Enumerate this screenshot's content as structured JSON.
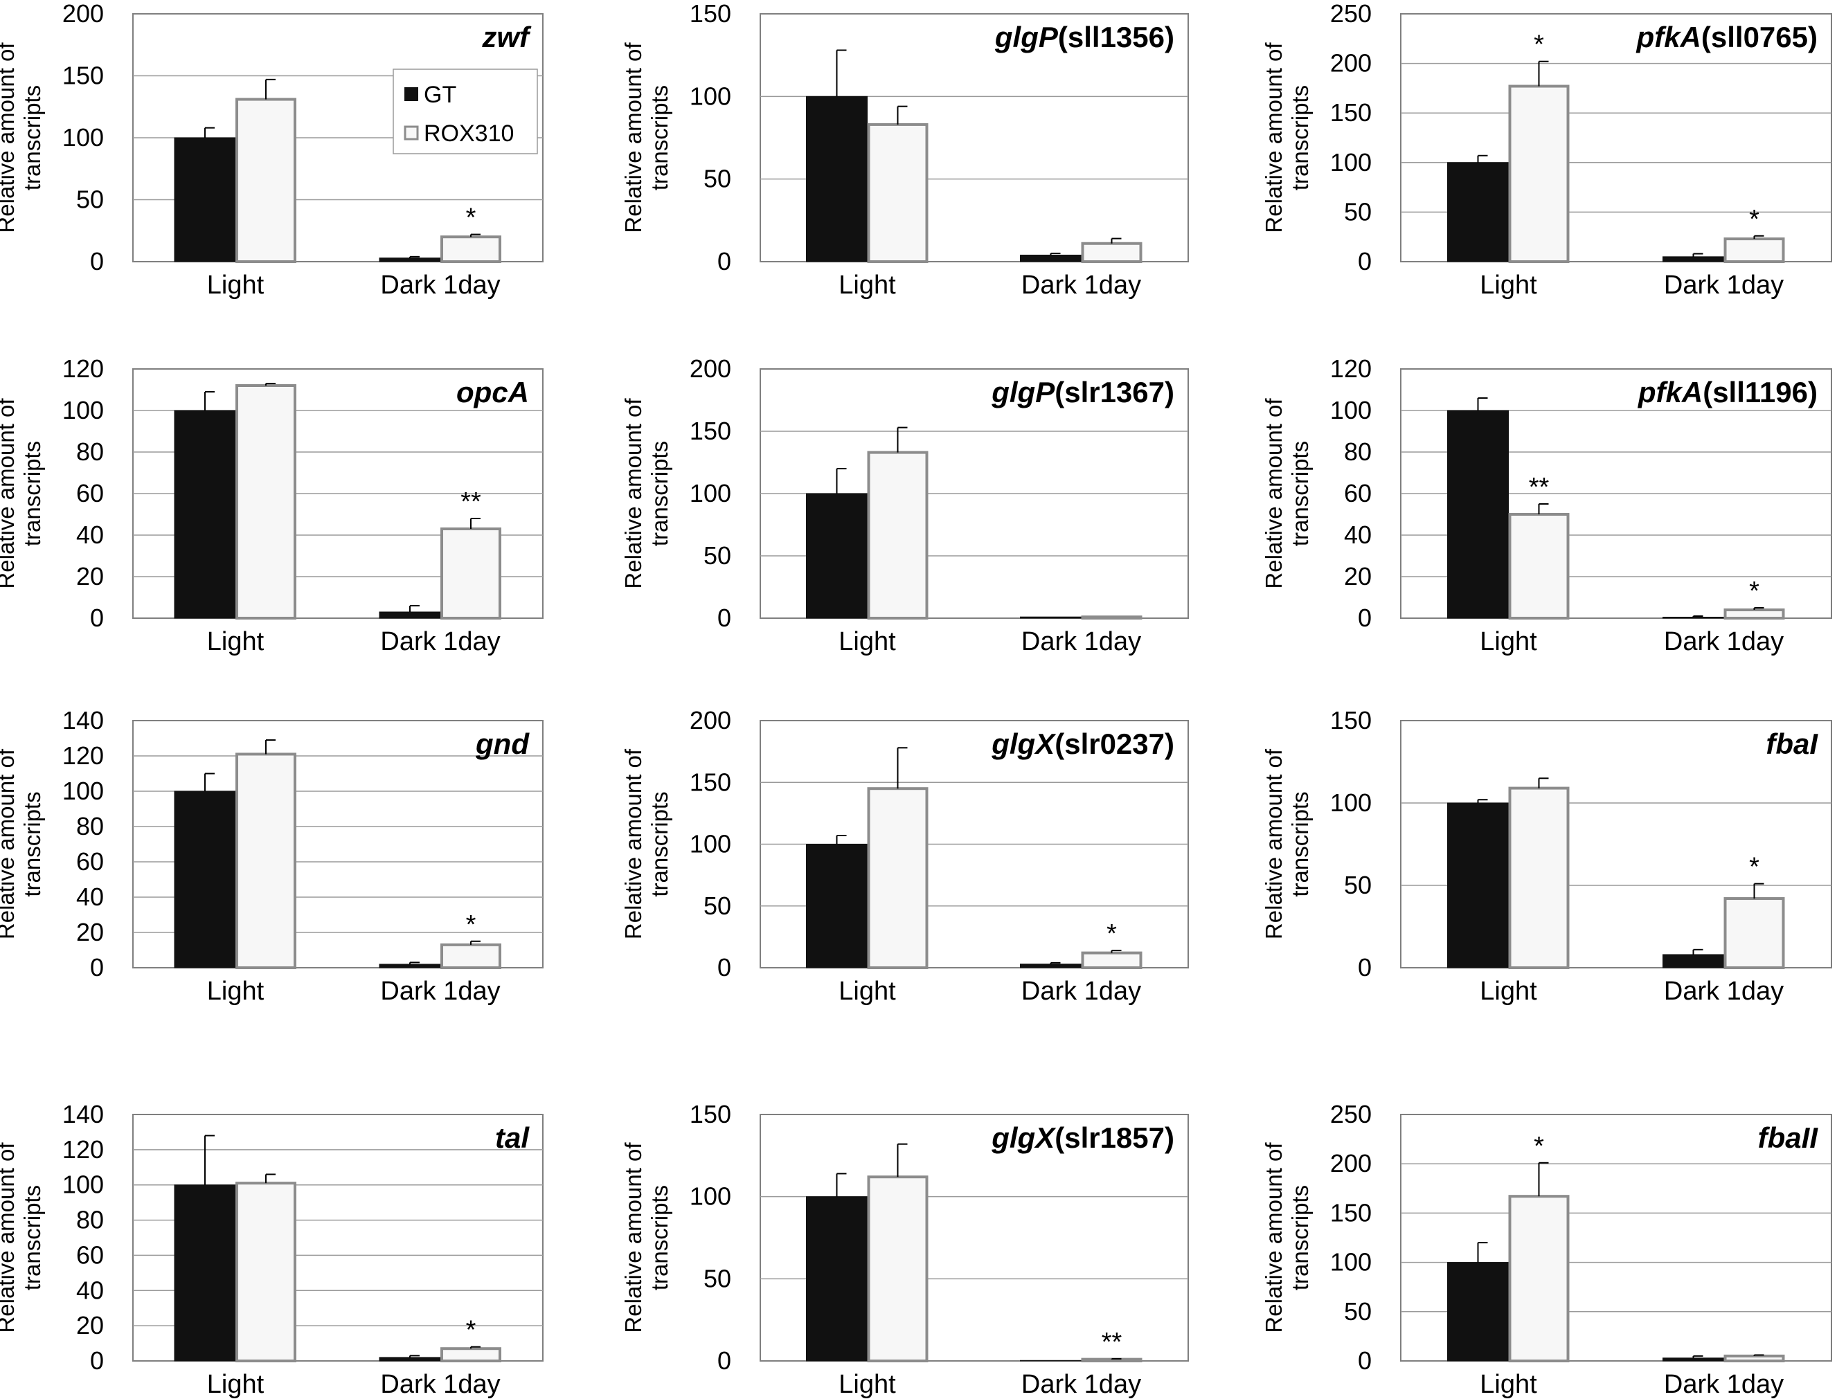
{
  "legend": {
    "entries": [
      {
        "name": "GT",
        "color": "#111111"
      },
      {
        "name": "ROX310",
        "color": "#8c8c8c"
      }
    ],
    "placement": "top-panel-1"
  },
  "colors": {
    "gt_fill": "#111111",
    "rox_fill": "#f7f7f7",
    "rox_stroke": "#8c8c8c",
    "grid": "#9a9a9a",
    "axis": "#7f7f7f"
  },
  "chart_data": [
    {
      "type": "bar",
      "title_gene": "zwf",
      "title_suffix": "",
      "ylabel": [
        "Relative amount of",
        "transcripts"
      ],
      "categories": [
        "Light",
        "Dark 1day"
      ],
      "ylim": [
        0,
        200
      ],
      "yticks": [
        0,
        50,
        100,
        150,
        200
      ],
      "series": [
        {
          "name": "GT",
          "values": [
            100,
            3
          ],
          "errors": [
            8,
            1
          ]
        },
        {
          "name": "ROX310",
          "values": [
            131,
            20
          ],
          "errors": [
            16,
            2
          ]
        }
      ],
      "annotations": [
        {
          "category": 1,
          "series": 1,
          "text": "*"
        }
      ],
      "legend": true
    },
    {
      "type": "bar",
      "title_gene": "glgP",
      "title_suffix": "(sll1356)",
      "ylabel": [
        "Relative amount of",
        "transcripts"
      ],
      "categories": [
        "Light",
        "Dark 1day"
      ],
      "ylim": [
        0,
        150
      ],
      "yticks": [
        0,
        50,
        100,
        150
      ],
      "series": [
        {
          "name": "GT",
          "values": [
            100,
            4
          ],
          "errors": [
            28,
            1
          ]
        },
        {
          "name": "ROX310",
          "values": [
            83,
            11
          ],
          "errors": [
            11,
            3
          ]
        }
      ],
      "annotations": []
    },
    {
      "type": "bar",
      "title_gene": "pfkA",
      "title_suffix": "(sll0765)",
      "ylabel": [
        "Relative amount of",
        "transcripts"
      ],
      "categories": [
        "Light",
        "Dark 1day"
      ],
      "ylim": [
        0,
        250
      ],
      "yticks": [
        0,
        50,
        100,
        150,
        200,
        250
      ],
      "series": [
        {
          "name": "GT",
          "values": [
            100,
            5
          ],
          "errors": [
            7,
            3
          ]
        },
        {
          "name": "ROX310",
          "values": [
            177,
            23
          ],
          "errors": [
            25,
            3
          ]
        }
      ],
      "annotations": [
        {
          "category": 0,
          "series": 1,
          "text": "*"
        },
        {
          "category": 1,
          "series": 1,
          "text": "*"
        }
      ]
    },
    {
      "type": "bar",
      "title_gene": "opcA",
      "title_suffix": "",
      "ylabel": [
        "Relative amount of",
        "transcripts"
      ],
      "categories": [
        "Light",
        "Dark 1day"
      ],
      "ylim": [
        0,
        120
      ],
      "yticks": [
        0,
        20,
        40,
        60,
        80,
        100,
        120
      ],
      "series": [
        {
          "name": "GT",
          "values": [
            100,
            3
          ],
          "errors": [
            9,
            3
          ]
        },
        {
          "name": "ROX310",
          "values": [
            112,
            43
          ],
          "errors": [
            1,
            5
          ]
        }
      ],
      "annotations": [
        {
          "category": 1,
          "series": 1,
          "text": "**"
        }
      ]
    },
    {
      "type": "bar",
      "title_gene": "glgP",
      "title_suffix": "(slr1367)",
      "ylabel": [
        "Relative amount of",
        "transcripts"
      ],
      "categories": [
        "Light",
        "Dark 1day"
      ],
      "ylim": [
        0,
        200
      ],
      "yticks": [
        0,
        50,
        100,
        150,
        200
      ],
      "series": [
        {
          "name": "GT",
          "values": [
            100,
            1
          ],
          "errors": [
            20,
            0
          ]
        },
        {
          "name": "ROX310",
          "values": [
            133,
            1
          ],
          "errors": [
            20,
            0
          ]
        }
      ],
      "annotations": []
    },
    {
      "type": "bar",
      "title_gene": "pfkA",
      "title_suffix": "(sll1196)",
      "ylabel": [
        "Relative amount of",
        "transcripts"
      ],
      "categories": [
        "Light",
        "Dark 1day"
      ],
      "ylim": [
        0,
        120
      ],
      "yticks": [
        0,
        20,
        40,
        60,
        80,
        100,
        120
      ],
      "series": [
        {
          "name": "GT",
          "values": [
            100,
            0.5
          ],
          "errors": [
            6,
            0.5
          ]
        },
        {
          "name": "ROX310",
          "values": [
            50,
            4
          ],
          "errors": [
            5,
            1
          ]
        }
      ],
      "annotations": [
        {
          "category": 0,
          "series": 1,
          "text": "**"
        },
        {
          "category": 1,
          "series": 1,
          "text": "*"
        }
      ]
    },
    {
      "type": "bar",
      "title_gene": "gnd",
      "title_suffix": "",
      "ylabel": [
        "Relative amount of",
        "transcripts"
      ],
      "categories": [
        "Light",
        "Dark 1day"
      ],
      "ylim": [
        0,
        140
      ],
      "yticks": [
        0,
        20,
        40,
        60,
        80,
        100,
        120,
        140
      ],
      "series": [
        {
          "name": "GT",
          "values": [
            100,
            2
          ],
          "errors": [
            10,
            1
          ]
        },
        {
          "name": "ROX310",
          "values": [
            121,
            13
          ],
          "errors": [
            8,
            2
          ]
        }
      ],
      "annotations": [
        {
          "category": 1,
          "series": 1,
          "text": "*"
        }
      ]
    },
    {
      "type": "bar",
      "title_gene": "glgX",
      "title_suffix": "(slr0237)",
      "ylabel": [
        "Relative amount of",
        "transcripts"
      ],
      "categories": [
        "Light",
        "Dark 1day"
      ],
      "ylim": [
        0,
        200
      ],
      "yticks": [
        0,
        50,
        100,
        150,
        200
      ],
      "series": [
        {
          "name": "GT",
          "values": [
            100,
            3
          ],
          "errors": [
            7,
            1
          ]
        },
        {
          "name": "ROX310",
          "values": [
            145,
            12
          ],
          "errors": [
            33,
            2
          ]
        }
      ],
      "annotations": [
        {
          "category": 1,
          "series": 1,
          "text": "*"
        }
      ]
    },
    {
      "type": "bar",
      "title_gene": "fbaI",
      "title_suffix": "",
      "ylabel": [
        "Relative amount of",
        "transcripts"
      ],
      "categories": [
        "Light",
        "Dark 1day"
      ],
      "ylim": [
        0,
        150
      ],
      "yticks": [
        0,
        50,
        100,
        150
      ],
      "series": [
        {
          "name": "GT",
          "values": [
            100,
            8
          ],
          "errors": [
            2,
            3
          ]
        },
        {
          "name": "ROX310",
          "values": [
            109,
            42
          ],
          "errors": [
            6,
            9
          ]
        }
      ],
      "annotations": [
        {
          "category": 1,
          "series": 1,
          "text": "*"
        }
      ]
    },
    {
      "type": "bar",
      "title_gene": "tal",
      "title_suffix": "",
      "ylabel": [
        "Relative amount of",
        "transcripts"
      ],
      "categories": [
        "Light",
        "Dark 1day"
      ],
      "ylim": [
        0,
        140
      ],
      "yticks": [
        0,
        20,
        40,
        60,
        80,
        100,
        120,
        140
      ],
      "series": [
        {
          "name": "GT",
          "values": [
            100,
            2
          ],
          "errors": [
            28,
            1
          ]
        },
        {
          "name": "ROX310",
          "values": [
            101,
            7
          ],
          "errors": [
            5,
            1
          ]
        }
      ],
      "annotations": [
        {
          "category": 1,
          "series": 1,
          "text": "*"
        }
      ]
    },
    {
      "type": "bar",
      "title_gene": "glgX",
      "title_suffix": "(slr1857)",
      "ylabel": [
        "Relative amount of",
        "transcripts"
      ],
      "categories": [
        "Light",
        "Dark 1day"
      ],
      "ylim": [
        0,
        150
      ],
      "yticks": [
        0,
        50,
        100,
        150
      ],
      "series": [
        {
          "name": "GT",
          "values": [
            100,
            0.3
          ],
          "errors": [
            14,
            0
          ]
        },
        {
          "name": "ROX310",
          "values": [
            112,
            1
          ],
          "errors": [
            20,
            0.3
          ]
        }
      ],
      "annotations": [
        {
          "category": 1,
          "series": 1,
          "text": "**"
        }
      ]
    },
    {
      "type": "bar",
      "title_gene": "fbaII",
      "title_suffix": "",
      "ylabel": [
        "Relative amount of",
        "transcripts"
      ],
      "categories": [
        "Light",
        "Dark 1day"
      ],
      "ylim": [
        0,
        250
      ],
      "yticks": [
        0,
        50,
        100,
        150,
        200,
        250
      ],
      "series": [
        {
          "name": "GT",
          "values": [
            100,
            3
          ],
          "errors": [
            20,
            2
          ]
        },
        {
          "name": "ROX310",
          "values": [
            167,
            5
          ],
          "errors": [
            34,
            1
          ]
        }
      ],
      "annotations": [
        {
          "category": 0,
          "series": 1,
          "text": "*"
        }
      ]
    }
  ]
}
